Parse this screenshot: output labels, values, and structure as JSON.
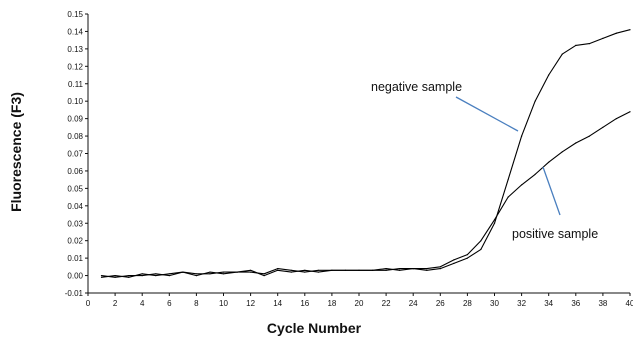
{
  "chart_data": {
    "type": "line",
    "title": "",
    "xlabel": "Cycle Number",
    "ylabel": "Fluorescence (F3)",
    "xlim": [
      0,
      40
    ],
    "ylim": [
      -0.01,
      0.15
    ],
    "grid": false,
    "x_ticks": [
      "0",
      "2",
      "4",
      "6",
      "8",
      "10",
      "12",
      "14",
      "16",
      "18",
      "20",
      "22",
      "24",
      "26",
      "28",
      "30",
      "32",
      "34",
      "36",
      "38",
      "40"
    ],
    "y_ticks": [
      "0.15",
      "0.14",
      "0.13",
      "0.12",
      "0.11",
      "0.10",
      "0.09",
      "0.08",
      "0.07",
      "0.06",
      "0.05",
      "0.04",
      "0.03",
      "0.02",
      "0.01",
      "0.00",
      "-0.01"
    ],
    "series": [
      {
        "name": "negative sample",
        "color": "#000000",
        "x": [
          1,
          2,
          3,
          4,
          5,
          6,
          7,
          8,
          9,
          10,
          11,
          12,
          13,
          14,
          15,
          16,
          17,
          18,
          19,
          20,
          21,
          22,
          23,
          24,
          25,
          26,
          27,
          28,
          29,
          30,
          31,
          32,
          33,
          34,
          35,
          36,
          37,
          38,
          39,
          40
        ],
        "values": [
          0.0,
          -0.001,
          0.0,
          0.0,
          0.001,
          0.0,
          0.002,
          0.001,
          0.001,
          0.002,
          0.002,
          0.002,
          0.001,
          0.004,
          0.003,
          0.002,
          0.003,
          0.003,
          0.003,
          0.003,
          0.003,
          0.004,
          0.003,
          0.004,
          0.003,
          0.004,
          0.007,
          0.01,
          0.015,
          0.03,
          0.055,
          0.08,
          0.1,
          0.115,
          0.127,
          0.132,
          0.133,
          0.136,
          0.139,
          0.141
        ]
      },
      {
        "name": "positive sample",
        "color": "#000000",
        "x": [
          1,
          2,
          3,
          4,
          5,
          6,
          7,
          8,
          9,
          10,
          11,
          12,
          13,
          14,
          15,
          16,
          17,
          18,
          19,
          20,
          21,
          22,
          23,
          24,
          25,
          26,
          27,
          28,
          29,
          30,
          31,
          32,
          33,
          34,
          35,
          36,
          37,
          38,
          39,
          40
        ],
        "values": [
          -0.001,
          0.0,
          -0.001,
          0.001,
          0.0,
          0.001,
          0.002,
          0.0,
          0.002,
          0.001,
          0.002,
          0.003,
          0.0,
          0.003,
          0.002,
          0.003,
          0.002,
          0.003,
          0.003,
          0.003,
          0.003,
          0.003,
          0.004,
          0.004,
          0.004,
          0.005,
          0.009,
          0.012,
          0.02,
          0.032,
          0.045,
          0.052,
          0.058,
          0.065,
          0.071,
          0.076,
          0.08,
          0.085,
          0.09,
          0.094
        ]
      }
    ],
    "annotations": [
      {
        "text": "negative sample",
        "target_series": "negative sample"
      },
      {
        "text": "positive sample",
        "target_series": "positive sample"
      }
    ],
    "annotation_line_color": "#4a7fbf"
  }
}
